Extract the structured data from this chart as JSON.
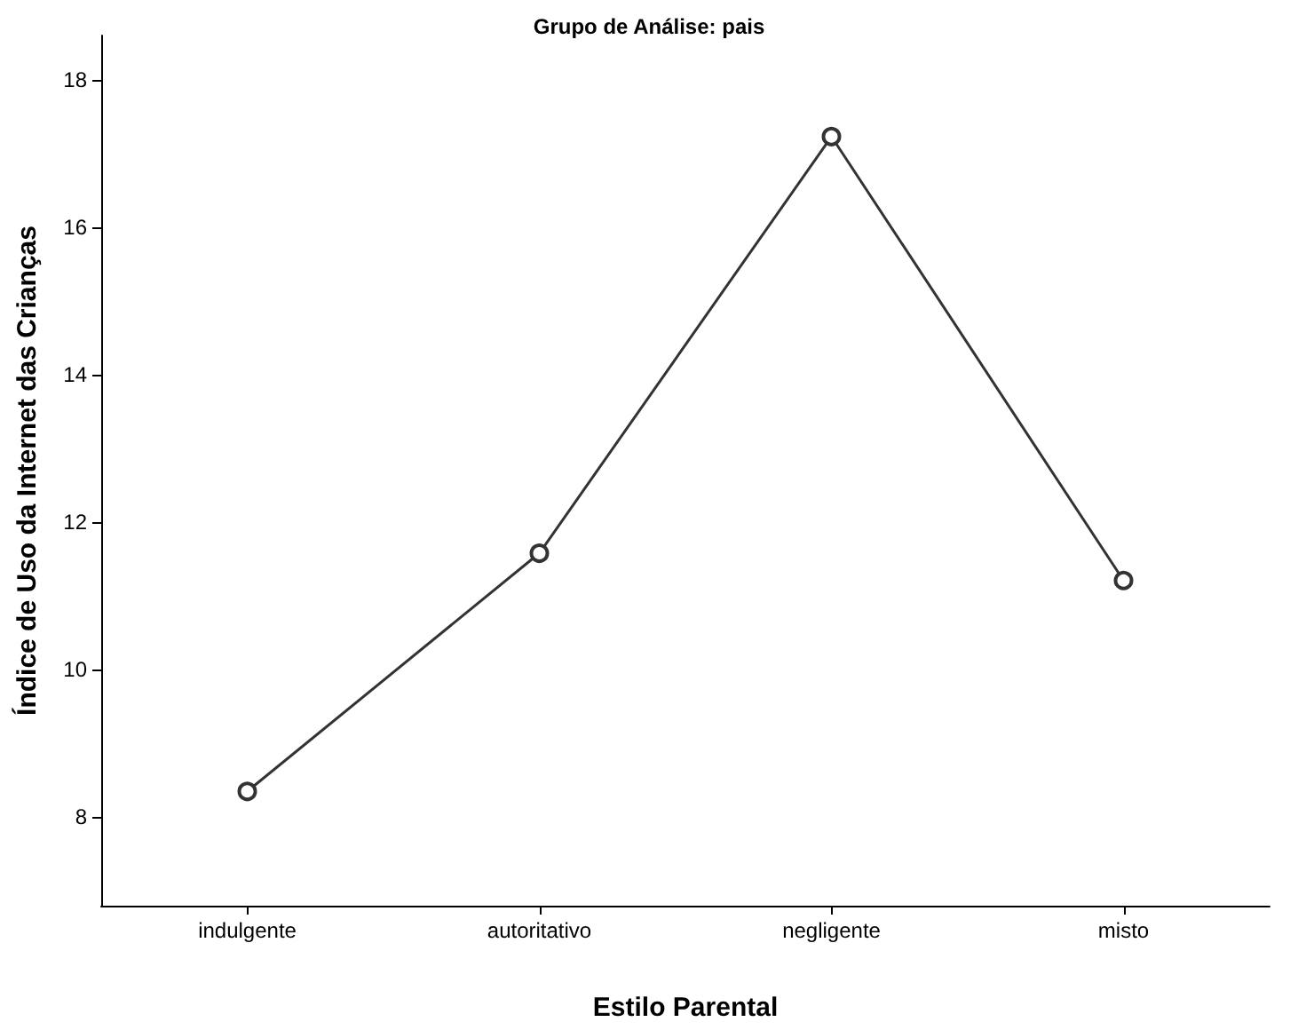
{
  "chart_data": {
    "type": "line",
    "title": "Grupo de Análise: pais",
    "xlabel": "Estilo Parental",
    "ylabel": "Índice de Uso da Internet das Crianças",
    "categories": [
      "indulgente",
      "autoritativo",
      "negligente",
      "misto"
    ],
    "series": [
      {
        "color": "#333333",
        "values": [
          8.35,
          11.58,
          17.23,
          11.21
        ]
      }
    ],
    "ylim": [
      6.8,
      18.6
    ],
    "yticks": [
      8,
      10,
      12,
      14,
      16,
      18
    ],
    "grid": false,
    "marker": "circle",
    "line_style": "solid"
  }
}
